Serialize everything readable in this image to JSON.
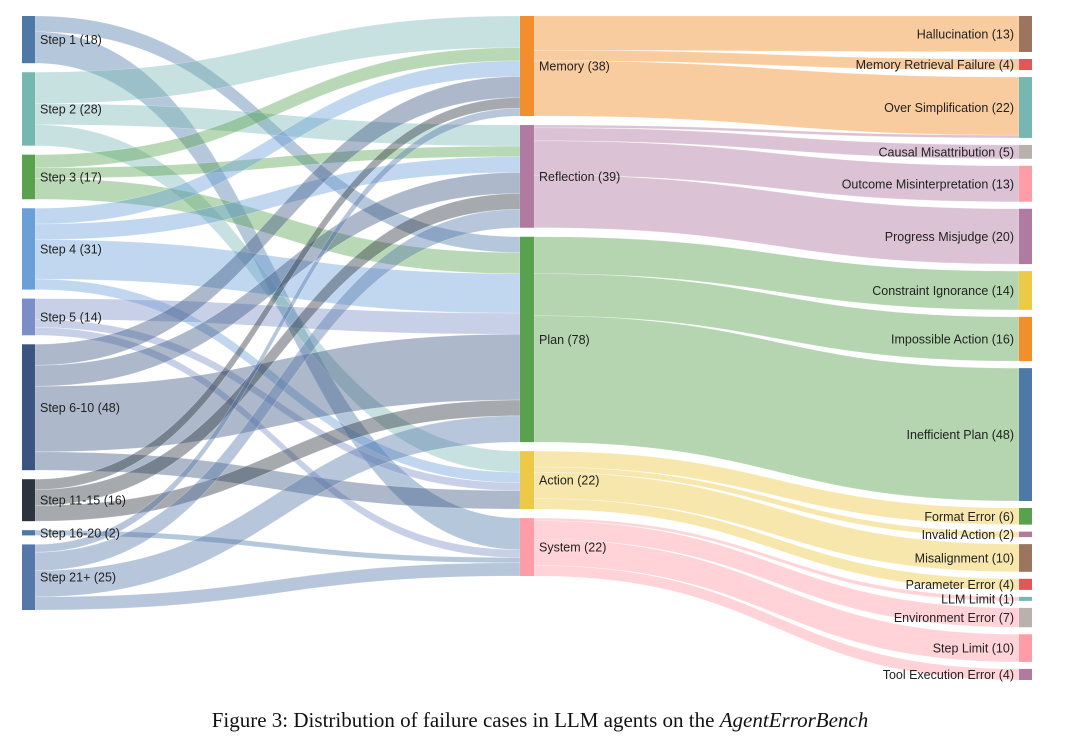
{
  "chart_data": {
    "type": "sankey",
    "columns": [
      {
        "name": "step",
        "nodes": [
          {
            "id": "s1",
            "label": "Step 1 (18)",
            "value": 18,
            "color": "#4e79a7"
          },
          {
            "id": "s2",
            "label": "Step 2 (28)",
            "value": 28,
            "color": "#76b7b2"
          },
          {
            "id": "s3",
            "label": "Step 3 (17)",
            "value": 17,
            "color": "#59a14f"
          },
          {
            "id": "s4",
            "label": "Step 4 (31)",
            "value": 31,
            "color": "#6a9fd8"
          },
          {
            "id": "s5",
            "label": "Step 5 (14)",
            "value": 14,
            "color": "#7b8ec8"
          },
          {
            "id": "s6",
            "label": "Step 6-10 (48)",
            "value": 48,
            "color": "#3b5580"
          },
          {
            "id": "s11",
            "label": "Step 11-15 (16)",
            "value": 16,
            "color": "#2b3440"
          },
          {
            "id": "s16",
            "label": "Step 16-20 (2)",
            "value": 2,
            "color": "#4e79a7"
          },
          {
            "id": "s21",
            "label": "Step 21+ (25)",
            "value": 25,
            "color": "#5577aa"
          }
        ]
      },
      {
        "name": "module",
        "nodes": [
          {
            "id": "memory",
            "label": "Memory (38)",
            "value": 38,
            "color": "#f28e2b"
          },
          {
            "id": "reflection",
            "label": "Reflection (39)",
            "value": 39,
            "color": "#b07aa1"
          },
          {
            "id": "plan",
            "label": "Plan (78)",
            "value": 78,
            "color": "#59a14f"
          },
          {
            "id": "action",
            "label": "Action (22)",
            "value": 22,
            "color": "#edc948"
          },
          {
            "id": "system",
            "label": "System (22)",
            "value": 22,
            "color": "#ff9da7"
          }
        ]
      },
      {
        "name": "error",
        "nodes": [
          {
            "id": "hall",
            "label": "Hallucination (13)",
            "value": 13,
            "color": "#9c755f"
          },
          {
            "id": "memret",
            "label": "Memory Retrieval Failure (4)",
            "value": 4,
            "color": "#e15759"
          },
          {
            "id": "oversimp",
            "label": "Over Simplification (22)",
            "value": 22,
            "color": "#76b7b2"
          },
          {
            "id": "causal",
            "label": "Causal Misattribution (5)",
            "value": 5,
            "color": "#bab0ac"
          },
          {
            "id": "outcome",
            "label": "Outcome Misinterpretation (13)",
            "value": 13,
            "color": "#ff9da7"
          },
          {
            "id": "progress",
            "label": "Progress Misjudge (20)",
            "value": 20,
            "color": "#b07aa1"
          },
          {
            "id": "constraint",
            "label": "Constraint Ignorance (14)",
            "value": 14,
            "color": "#edc948"
          },
          {
            "id": "impossible",
            "label": "Impossible Action (16)",
            "value": 16,
            "color": "#f28e2b"
          },
          {
            "id": "inefficient",
            "label": "Inefficient Plan (48)",
            "value": 48,
            "color": "#4e79a7"
          },
          {
            "id": "format",
            "label": "Format Error (6)",
            "value": 6,
            "color": "#59a14f"
          },
          {
            "id": "invalid",
            "label": "Invalid Action (2)",
            "value": 2,
            "color": "#b07aa1"
          },
          {
            "id": "misalign",
            "label": "Misalignment (10)",
            "value": 10,
            "color": "#9c755f"
          },
          {
            "id": "param",
            "label": "Parameter Error (4)",
            "value": 4,
            "color": "#e15759"
          },
          {
            "id": "llmlimit",
            "label": "LLM Limit (1)",
            "value": 1,
            "color": "#76b7b2"
          },
          {
            "id": "env",
            "label": "Environment Error (7)",
            "value": 7,
            "color": "#bab0ac"
          },
          {
            "id": "steplimit",
            "label": "Step Limit (10)",
            "value": 10,
            "color": "#ff9da7"
          },
          {
            "id": "toolexec",
            "label": "Tool Execution Error (4)",
            "value": 4,
            "color": "#b07aa1"
          }
        ]
      }
    ],
    "links": [
      {
        "source": "s1",
        "target": "plan",
        "value": 6
      },
      {
        "source": "s1",
        "target": "system",
        "value": 12
      },
      {
        "source": "s2",
        "target": "memory",
        "value": 12
      },
      {
        "source": "s2",
        "target": "reflection",
        "value": 8
      },
      {
        "source": "s2",
        "target": "action",
        "value": 8
      },
      {
        "source": "s3",
        "target": "memory",
        "value": 5
      },
      {
        "source": "s3",
        "target": "reflection",
        "value": 4
      },
      {
        "source": "s3",
        "target": "plan",
        "value": 8
      },
      {
        "source": "s4",
        "target": "memory",
        "value": 6
      },
      {
        "source": "s4",
        "target": "reflection",
        "value": 6
      },
      {
        "source": "s4",
        "target": "plan",
        "value": 15
      },
      {
        "source": "s4",
        "target": "action",
        "value": 4
      },
      {
        "source": "s5",
        "target": "plan",
        "value": 8
      },
      {
        "source": "s5",
        "target": "action",
        "value": 3
      },
      {
        "source": "s5",
        "target": "system",
        "value": 3
      },
      {
        "source": "s6",
        "target": "memory",
        "value": 8
      },
      {
        "source": "s6",
        "target": "reflection",
        "value": 8
      },
      {
        "source": "s6",
        "target": "plan",
        "value": 25
      },
      {
        "source": "s6",
        "target": "action",
        "value": 7
      },
      {
        "source": "s11",
        "target": "memory",
        "value": 4
      },
      {
        "source": "s11",
        "target": "reflection",
        "value": 6
      },
      {
        "source": "s11",
        "target": "plan",
        "value": 6
      },
      {
        "source": "s16",
        "target": "system",
        "value": 2
      },
      {
        "source": "s21",
        "target": "memory",
        "value": 3
      },
      {
        "source": "s21",
        "target": "reflection",
        "value": 7
      },
      {
        "source": "s21",
        "target": "plan",
        "value": 10
      },
      {
        "source": "s21",
        "target": "system",
        "value": 5
      },
      {
        "source": "memory",
        "target": "hall",
        "value": 13
      },
      {
        "source": "memory",
        "target": "memret",
        "value": 4
      },
      {
        "source": "memory",
        "target": "oversimp",
        "value": 21
      },
      {
        "source": "reflection",
        "target": "causal",
        "value": 5
      },
      {
        "source": "reflection",
        "target": "outcome",
        "value": 13
      },
      {
        "source": "reflection",
        "target": "progress",
        "value": 20
      },
      {
        "source": "reflection",
        "target": "oversimp",
        "value": 1
      },
      {
        "source": "plan",
        "target": "constraint",
        "value": 14
      },
      {
        "source": "plan",
        "target": "impossible",
        "value": 16
      },
      {
        "source": "plan",
        "target": "inefficient",
        "value": 48
      },
      {
        "source": "action",
        "target": "format",
        "value": 6
      },
      {
        "source": "action",
        "target": "invalid",
        "value": 2
      },
      {
        "source": "action",
        "target": "misalign",
        "value": 10
      },
      {
        "source": "action",
        "target": "param",
        "value": 4
      },
      {
        "source": "system",
        "target": "llmlimit",
        "value": 1
      },
      {
        "source": "system",
        "target": "env",
        "value": 7
      },
      {
        "source": "system",
        "target": "steplimit",
        "value": 10
      },
      {
        "source": "system",
        "target": "toolexec",
        "value": 4
      }
    ]
  },
  "caption": {
    "prefix": "Figure 3: Distribution of failure cases in LLM agents on the ",
    "benchmark": "AgentErrorBench"
  }
}
